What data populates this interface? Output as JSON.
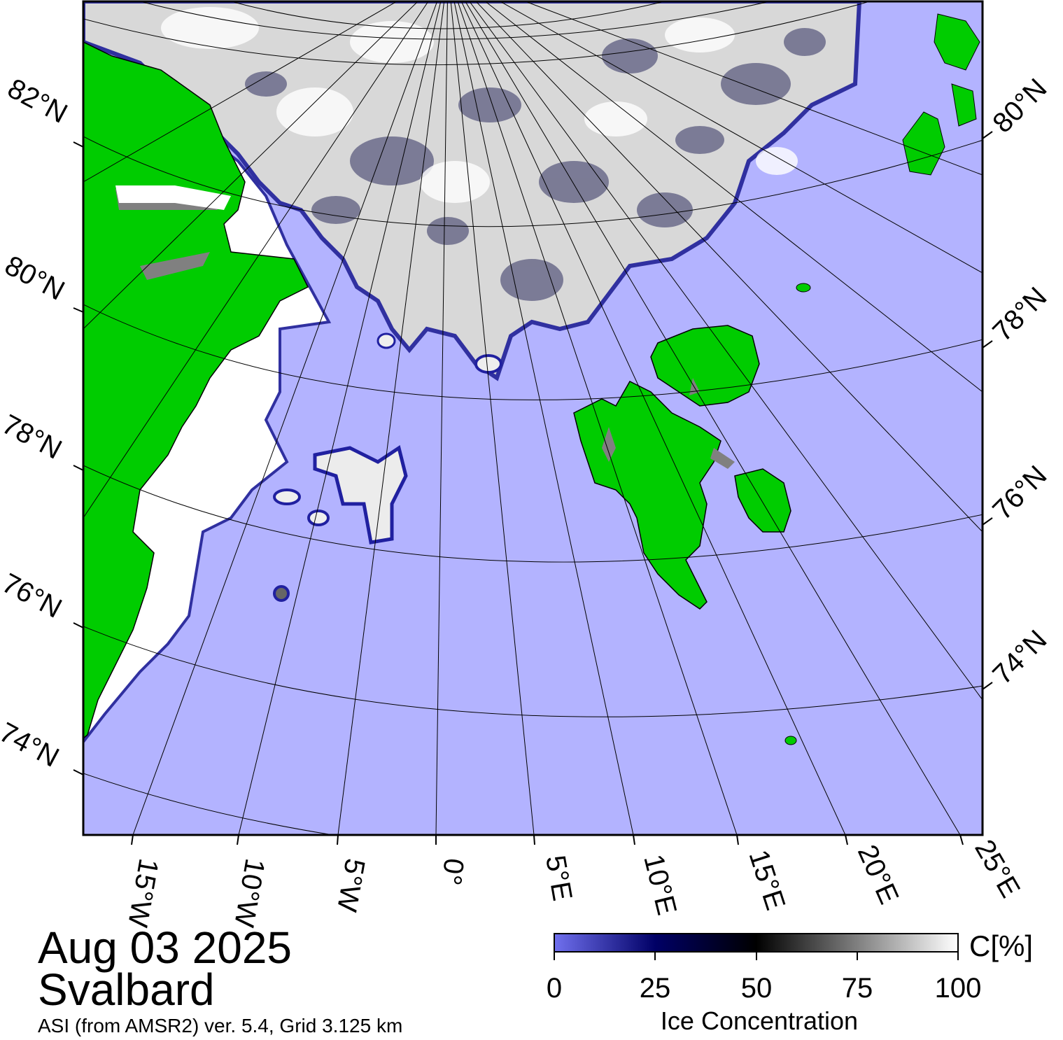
{
  "date": "Aug 03 2025",
  "region": "Svalbard",
  "product": "ASI (from AMSR2) ver. 5.4,  Grid 3.125 km",
  "colorbar": {
    "unit": "C[%]",
    "label": "Ice Concentration",
    "ticks": [
      "0",
      "25",
      "50",
      "75",
      "100"
    ],
    "stops": [
      {
        "value": 0,
        "color": "#7070ee"
      },
      {
        "value": 25,
        "color": "#000066"
      },
      {
        "value": 50,
        "color": "#000000"
      },
      {
        "value": 100,
        "color": "#ffffff"
      }
    ]
  },
  "colors": {
    "open_water": "#b3b3ff",
    "land": "#00cc00",
    "coast_mask": "#808080",
    "ice_full": "#ffffff"
  },
  "graticule": {
    "left_lat_labels": [
      "82°N",
      "80°N",
      "78°N",
      "76°N",
      "74°N"
    ],
    "right_lat_labels": [
      "80°N",
      "78°N",
      "76°N",
      "74°N"
    ],
    "lon_labels": [
      "15°W",
      "10°W",
      "5°W",
      "0°",
      "5°E",
      "10°E",
      "15°E",
      "20°E",
      "25°E"
    ]
  }
}
